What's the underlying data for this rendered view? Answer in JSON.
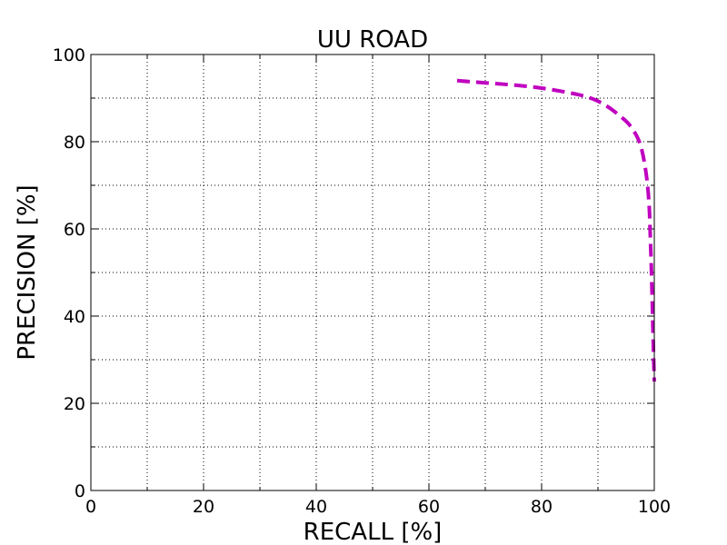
{
  "chart_data": {
    "type": "line",
    "title": "UU ROAD",
    "xlabel": "RECALL [%]",
    "ylabel": "PRECISION [%]",
    "xlim": [
      0,
      100
    ],
    "ylim": [
      0,
      100
    ],
    "x_ticks": [
      0,
      20,
      40,
      60,
      80,
      100
    ],
    "y_ticks": [
      0,
      20,
      40,
      60,
      80,
      100
    ],
    "x_tick_labels": [
      "0",
      "20",
      "40",
      "60",
      "80",
      "100"
    ],
    "y_tick_labels": [
      "0",
      "20",
      "40",
      "60",
      "80",
      "100"
    ],
    "grid": true,
    "legend": "none",
    "series": [
      {
        "color": "#bf00bf",
        "line_style": "dashed",
        "x": [
          65,
          70,
          75,
          80,
          85,
          88,
          90,
          92,
          94,
          95.5,
          97,
          97.8,
          98.4,
          98.8,
          99.1,
          99.3,
          99.5,
          99.7,
          99.85,
          100
        ],
        "y": [
          94,
          93.5,
          93,
          92.3,
          91.2,
          90.3,
          89.3,
          87.8,
          85.8,
          84,
          81,
          78,
          74,
          70,
          65,
          58,
          50,
          40,
          32,
          25
        ]
      }
    ]
  }
}
